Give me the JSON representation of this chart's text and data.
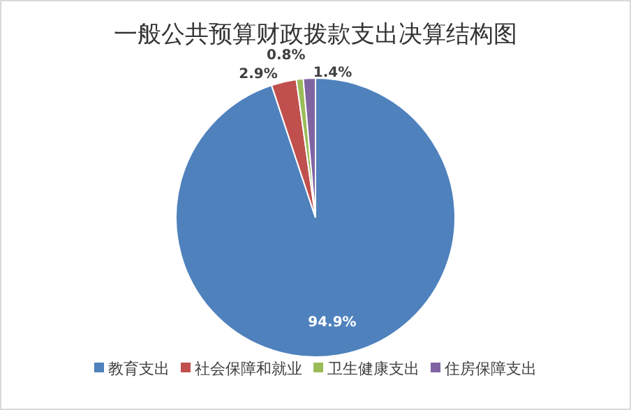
{
  "chart_data": {
    "type": "pie",
    "title": "一般公共预算财政拨款支出决算结构图",
    "categories": [
      "教育支出",
      "社会保障和就业",
      "卫生健康支出",
      "住房保障支出"
    ],
    "values": [
      94.9,
      2.9,
      0.8,
      1.4
    ],
    "colors": [
      "#4f81bd",
      "#c0504d",
      "#9bbb59",
      "#8064a2"
    ],
    "value_labels": [
      "94.9%",
      "2.9%",
      "0.8%",
      "1.4%"
    ],
    "legend": "bottom"
  }
}
